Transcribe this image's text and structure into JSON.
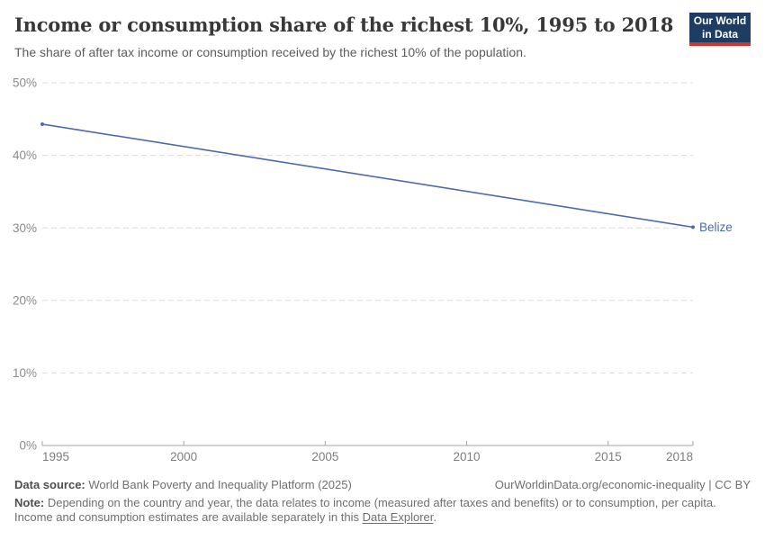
{
  "header": {
    "title": "Income or consumption share of the richest 10%, 1995 to 2018",
    "subtitle": "The share of after tax income or consumption received by the richest 10% of the population."
  },
  "logo": {
    "line1": "Our World",
    "line2": "in Data",
    "bg_color": "#1d3d63",
    "accent_color": "#d0352b"
  },
  "chart_data": {
    "type": "line",
    "title": "Income or consumption share of the richest 10%, 1995 to 2018",
    "xlabel": "",
    "ylabel": "",
    "xlim": [
      1995,
      2018
    ],
    "ylim": [
      0,
      50
    ],
    "xticks": [
      1995,
      2000,
      2005,
      2010,
      2015,
      2018
    ],
    "yticks": [
      0,
      10,
      20,
      30,
      40,
      50
    ],
    "ytick_suffix": "%",
    "grid": "horizontal-dashed",
    "legend_position": "end-of-line-label",
    "grid_color": "#dcdcdc",
    "axis_color": "#a5a5a5",
    "ytick_label_color": "#8b8b8b",
    "xtick_label_color": "#7e7e7e",
    "series": [
      {
        "name": "Belize",
        "color": "#4c6ba9",
        "points": [
          {
            "x": 1995,
            "y": 44.3
          },
          {
            "x": 2018,
            "y": 30.1
          }
        ]
      }
    ]
  },
  "footer": {
    "source_label": "Data source:",
    "source_text": " World Bank Poverty and Inequality Platform (2025)",
    "attribution": "OurWorldinData.org/economic-inequality | CC BY",
    "note_label": "Note:",
    "note_body": " Depending on the country and year, the data relates to income (measured after taxes and benefits) or to consumption, per capita. Income and consumption estimates are available separately in this ",
    "note_link": "Data Explorer",
    "note_suffix": "."
  }
}
